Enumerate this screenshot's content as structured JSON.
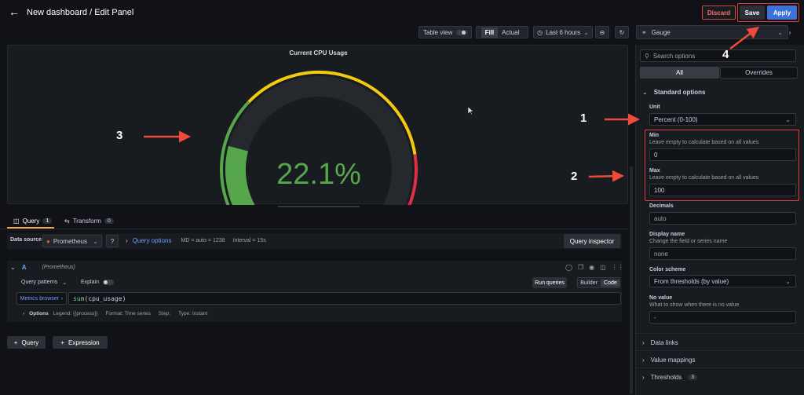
{
  "header": {
    "title": "New dashboard / Edit Panel",
    "discard": "Discard",
    "save": "Save",
    "apply": "Apply"
  },
  "toolbar": {
    "table_view": "Table view",
    "fill": "Fill",
    "actual": "Actual",
    "time_range": "Last 6 hours"
  },
  "visualization": {
    "type": "Gauge"
  },
  "panel": {
    "title": "Current CPU Usage",
    "value": "22.1%",
    "gauge_fraction": 0.221,
    "min": 0,
    "max": 100,
    "threshold_colors": [
      "#56a64b",
      "#f2cc0c",
      "#e02f44"
    ]
  },
  "tabs": {
    "query": "Query",
    "query_count": "1",
    "transform": "Transform",
    "transform_count": "0"
  },
  "query_bar": {
    "data_source_label": "Data source",
    "data_source": "Prometheus",
    "query_options": "Query options",
    "md": "MD = auto = 1238",
    "interval": "Interval = 15s",
    "inspector": "Query inspector"
  },
  "query_row": {
    "ref": "A",
    "source": "(Prometheus)",
    "patterns": "Query patterns",
    "explain": "Explain",
    "run": "Run queries",
    "builder": "Builder",
    "code": "Code",
    "metrics_browser": "Metrics browser",
    "expr_fn": "sum",
    "expr_arg": "(cpu_usage)",
    "options_label": "Options",
    "legend": "Legend: {{process}}",
    "format": "Format: Time series",
    "step": "Step:",
    "type": "Type: Instant"
  },
  "bottom_buttons": {
    "query": "Query",
    "expression": "Expression"
  },
  "options_pane": {
    "search_placeholder": "Search options",
    "tab_all": "All",
    "tab_overrides": "Overrides",
    "standard_options": "Standard options",
    "unit_label": "Unit",
    "unit_value": "Percent (0-100)",
    "min_label": "Min",
    "min_desc": "Leave empty to calculate based on all values",
    "min_value": "0",
    "max_label": "Max",
    "max_desc": "Leave empty to calculate based on all values",
    "max_value": "100",
    "decimals_label": "Decimals",
    "decimals_value": "auto",
    "display_name_label": "Display name",
    "display_name_desc": "Change the field or series name",
    "display_name_value": "none",
    "color_scheme_label": "Color scheme",
    "color_scheme_value": "From thresholds (by value)",
    "no_value_label": "No value",
    "no_value_desc": "What to show when there is no value",
    "no_value_value": "-",
    "data_links": "Data links",
    "value_mappings": "Value mappings",
    "thresholds": "Thresholds",
    "thresholds_count": "3"
  },
  "annotations": {
    "n1": "1",
    "n2": "2",
    "n3": "3",
    "n4": "4"
  }
}
